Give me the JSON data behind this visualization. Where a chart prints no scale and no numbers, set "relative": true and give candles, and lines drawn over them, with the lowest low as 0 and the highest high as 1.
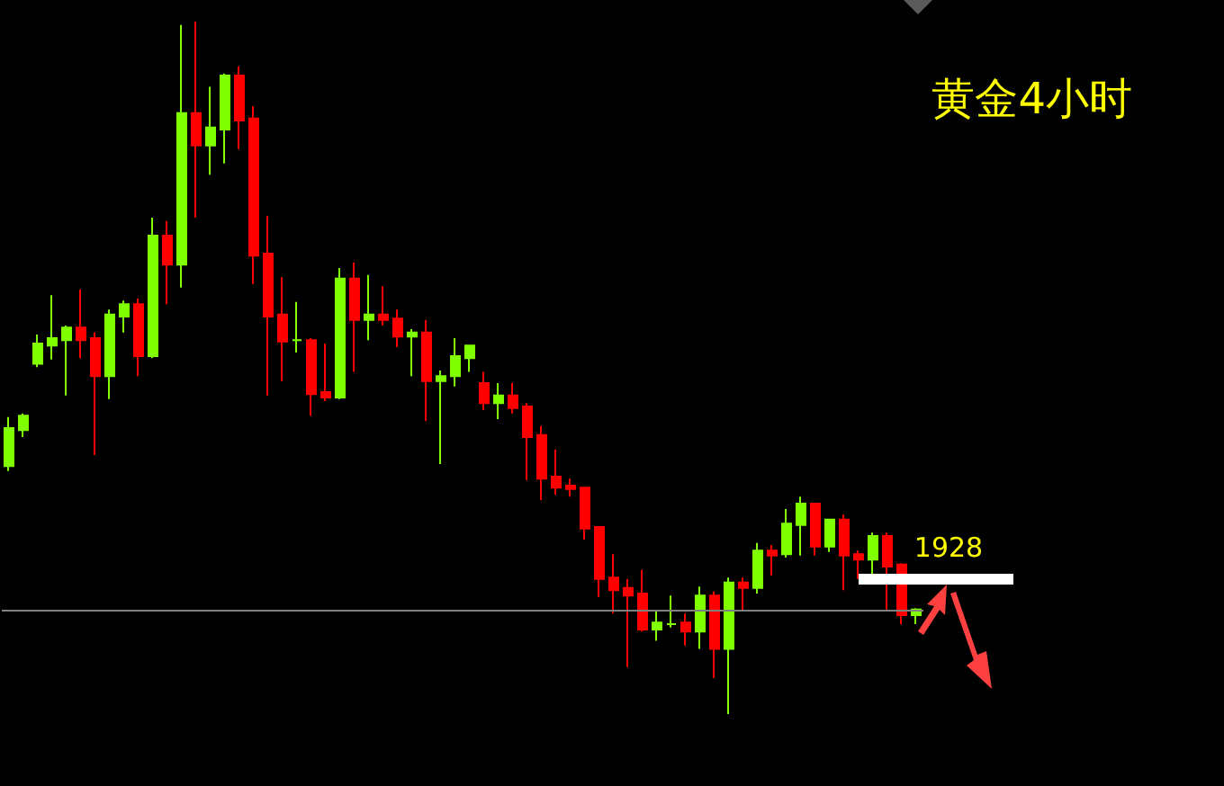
{
  "chart_data": {
    "type": "candlestick",
    "title": "黄金4小时",
    "relative": true,
    "categories": [
      null,
      null,
      null,
      null,
      null,
      null,
      null,
      null,
      null,
      null,
      null,
      null,
      null,
      null,
      null,
      null,
      null,
      null,
      null,
      null,
      null,
      null,
      null,
      null,
      null,
      null,
      null,
      null,
      null,
      null,
      null,
      null,
      null,
      null,
      null,
      null,
      null,
      null,
      null,
      null,
      null,
      null,
      null,
      null,
      null,
      null,
      null,
      null,
      null,
      null,
      null,
      null,
      null,
      null,
      null,
      null,
      null,
      null,
      null,
      null,
      null,
      null,
      null,
      null
    ],
    "ohlc": [
      [
        0.358,
        0.429,
        0.351,
        0.413
      ],
      [
        0.41,
        0.434,
        0.4,
        0.431
      ],
      [
        0.506,
        0.548,
        0.501,
        0.535
      ],
      [
        0.532,
        0.605,
        0.512,
        0.543
      ],
      [
        0.54,
        0.561,
        0.46,
        0.558
      ],
      [
        0.558,
        0.613,
        0.514,
        0.54
      ],
      [
        0.543,
        0.551,
        0.374,
        0.488
      ],
      [
        0.488,
        0.584,
        0.455,
        0.577
      ],
      [
        0.574,
        0.597,
        0.551,
        0.592
      ],
      [
        0.592,
        0.6,
        0.488,
        0.517
      ],
      [
        0.517,
        0.717,
        0.514,
        0.691
      ],
      [
        0.691,
        0.712,
        0.592,
        0.649
      ],
      [
        0.649,
        0.995,
        0.616,
        0.868
      ],
      [
        0.868,
        1,
        0.717,
        0.821
      ],
      [
        0.821,
        0.906,
        0.779,
        0.847
      ],
      [
        0.844,
        0.925,
        0.795,
        0.922
      ],
      [
        0.922,
        0.935,
        0.816,
        0.857
      ],
      [
        0.86,
        0.878,
        0.621,
        0.662
      ],
      [
        0.665,
        0.719,
        0.46,
        0.574
      ],
      [
        0.577,
        0.631,
        0.481,
        0.538
      ],
      [
        0.54,
        0.595,
        0.522,
        0.54
      ],
      [
        0.54,
        0.543,
        0.431,
        0.462
      ],
      [
        0.465,
        0.535,
        0.452,
        0.457
      ],
      [
        0.457,
        0.644,
        0.455,
        0.629
      ],
      [
        0.629,
        0.652,
        0.494,
        0.569
      ],
      [
        0.569,
        0.634,
        0.54,
        0.577
      ],
      [
        0.577,
        0.618,
        0.561,
        0.569
      ],
      [
        0.571,
        0.584,
        0.53,
        0.545
      ],
      [
        0.545,
        0.556,
        0.488,
        0.551
      ],
      [
        0.551,
        0.569,
        0.423,
        0.481
      ],
      [
        0.481,
        0.496,
        0.361,
        0.488
      ],
      [
        0.488,
        0.543,
        0.473,
        0.517
      ],
      [
        0.514,
        0.532,
        0.494,
        0.532
      ],
      [
        0.478,
        0.494,
        0.439,
        0.449
      ],
      [
        0.449,
        0.478,
        0.426,
        0.46
      ],
      [
        0.46,
        0.478,
        0.434,
        0.442
      ],
      [
        0.444,
        0.449,
        0.338,
        0.4
      ],
      [
        0.403,
        0.416,
        0.309,
        0.34
      ],
      [
        0.343,
        0.382,
        0.317,
        0.327
      ],
      [
        0.33,
        0.34,
        0.314,
        0.325
      ],
      [
        0.327,
        0.327,
        0.252,
        0.268
      ],
      [
        0.27,
        0.27,
        0.169,
        0.195
      ],
      [
        0.197,
        0.231,
        0.145,
        0.179
      ],
      [
        0.182,
        0.195,
        0.068,
        0.171
      ],
      [
        0.174,
        0.208,
        0.119,
        0.122
      ],
      [
        0.122,
        0.148,
        0.106,
        0.132
      ],
      [
        0.13,
        0.171,
        0.125,
        0.13
      ],
      [
        0.132,
        0.145,
        0.099,
        0.119
      ],
      [
        0.119,
        0.184,
        0.094,
        0.171
      ],
      [
        0.171,
        0.177,
        0.052,
        0.094
      ],
      [
        0.094,
        0.197,
        0,
        0.19
      ],
      [
        0.19,
        0.197,
        0.148,
        0.182
      ],
      [
        0.182,
        0.247,
        0.174,
        0.236
      ],
      [
        0.236,
        0.244,
        0.2,
        0.229
      ],
      [
        0.231,
        0.296,
        0.226,
        0.275
      ],
      [
        0.273,
        0.314,
        0.229,
        0.304
      ],
      [
        0.304,
        0.304,
        0.229,
        0.242
      ],
      [
        0.242,
        0.281,
        0.234,
        0.281
      ],
      [
        0.281,
        0.288,
        0.179,
        0.229
      ],
      [
        0.231,
        0.236,
        0.195,
        0.223
      ],
      [
        0.223,
        0.262,
        0.195,
        0.257
      ],
      [
        0.257,
        0.262,
        0.151,
        0.213
      ],
      [
        0.216,
        0.218,
        0.13,
        0.143
      ],
      [
        0.143,
        0.153,
        0.13,
        0.151
      ]
    ],
    "colors": [
      "#80ff00",
      "#80ff00",
      "#80ff00",
      "#80ff00",
      "#80ff00",
      "#ff0000",
      "#ff0000",
      "#80ff00",
      "#80ff00",
      "#ff0000",
      "#80ff00",
      "#ff0000",
      "#80ff00",
      "#ff0000",
      "#80ff00",
      "#80ff00",
      "#ff0000",
      "#ff0000",
      "#ff0000",
      "#ff0000",
      "#80ff00",
      "#ff0000",
      "#ff0000",
      "#80ff00",
      "#ff0000",
      "#80ff00",
      "#ff0000",
      "#ff0000",
      "#80ff00",
      "#ff0000",
      "#80ff00",
      "#80ff00",
      "#80ff00",
      "#ff0000",
      "#80ff00",
      "#ff0000",
      "#ff0000",
      "#ff0000",
      "#ff0000",
      "#ff0000",
      "#ff0000",
      "#ff0000",
      "#ff0000",
      "#ff0000",
      "#ff0000",
      "#80ff00",
      "#80ff00",
      "#ff0000",
      "#80ff00",
      "#ff0000",
      "#80ff00",
      "#ff0000",
      "#80ff00",
      "#ff0000",
      "#80ff00",
      "#80ff00",
      "#ff0000",
      "#80ff00",
      "#ff0000",
      "#ff0000",
      "#80ff00",
      "#ff0000",
      "#ff0000",
      "#80ff00"
    ],
    "ref_lines": [
      {
        "axis": "y",
        "value": 0.151,
        "color": "#808080"
      }
    ],
    "annotations": [
      "1928"
    ],
    "grid": false
  }
}
